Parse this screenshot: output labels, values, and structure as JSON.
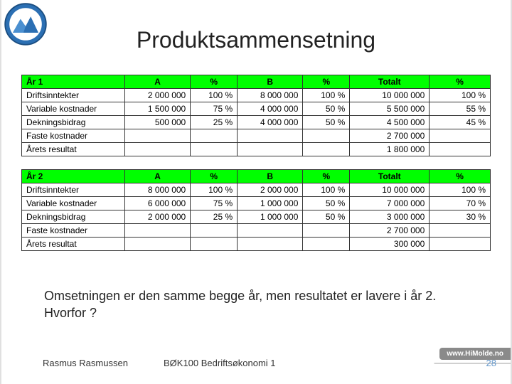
{
  "title": "Produktsammensetning",
  "note": "Omsetningen er den samme begge år, men resultatet er lavere i år 2. Hvorfor ?",
  "footer": {
    "author": "Rasmus Rasmussen",
    "course": "BØK100 Bedriftsøkonomi 1",
    "url": "www.HiMolde.no",
    "page": "28"
  },
  "columns": {
    "a": "A",
    "apct": "%",
    "b": "B",
    "bpct": "%",
    "total": "Totalt",
    "tpct": "%"
  },
  "tables": [
    {
      "header": "År 1",
      "rows": [
        {
          "label": "Driftsinntekter",
          "a": "2 000 000",
          "apct": "100 %",
          "b": "8 000 000",
          "bpct": "100 %",
          "t": "10 000 000",
          "tpct": "100 %"
        },
        {
          "label": "Variable kostnader",
          "a": "1 500 000",
          "apct": "75 %",
          "b": "4 000 000",
          "bpct": "50 %",
          "t": "5 500 000",
          "tpct": "55 %"
        },
        {
          "label": "Dekningsbidrag",
          "a": "500 000",
          "apct": "25 %",
          "b": "4 000 000",
          "bpct": "50 %",
          "t": "4 500 000",
          "tpct": "45 %"
        },
        {
          "label": "Faste kostnader",
          "a": "",
          "apct": "",
          "b": "",
          "bpct": "",
          "t": "2 700 000",
          "tpct": ""
        },
        {
          "label": "Årets resultat",
          "a": "",
          "apct": "",
          "b": "",
          "bpct": "",
          "t": "1 800 000",
          "tpct": ""
        }
      ]
    },
    {
      "header": "År 2",
      "rows": [
        {
          "label": "Driftsinntekter",
          "a": "8 000 000",
          "apct": "100 %",
          "b": "2 000 000",
          "bpct": "100 %",
          "t": "10 000 000",
          "tpct": "100 %"
        },
        {
          "label": "Variable kostnader",
          "a": "6 000 000",
          "apct": "75 %",
          "b": "1 000 000",
          "bpct": "50 %",
          "t": "7 000 000",
          "tpct": "70 %"
        },
        {
          "label": "Dekningsbidrag",
          "a": "2 000 000",
          "apct": "25 %",
          "b": "1 000 000",
          "bpct": "50 %",
          "t": "3 000 000",
          "tpct": "30 %"
        },
        {
          "label": "Faste kostnader",
          "a": "",
          "apct": "",
          "b": "",
          "bpct": "",
          "t": "2 700 000",
          "tpct": ""
        },
        {
          "label": "Årets resultat",
          "a": "",
          "apct": "",
          "b": "",
          "bpct": "",
          "t": "300 000",
          "tpct": ""
        }
      ]
    }
  ],
  "colors": {
    "header_bg": "#00ff00",
    "border": "#333333",
    "link": "#6699cc"
  }
}
